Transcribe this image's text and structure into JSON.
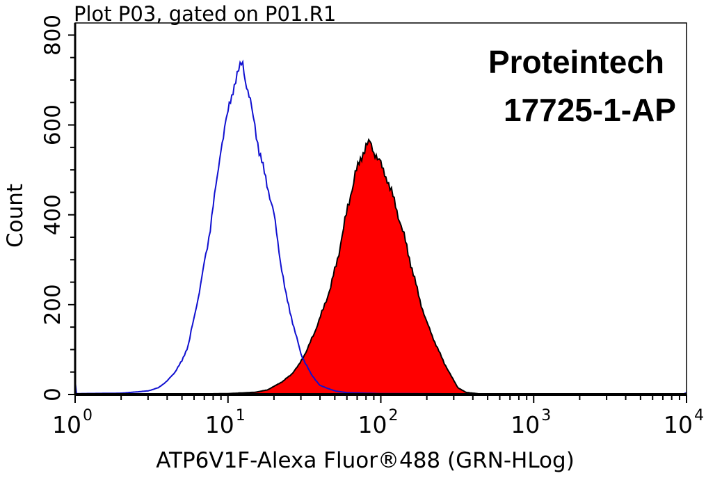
{
  "chart_data": {
    "type": "area",
    "title": "Plot P03, gated on P01.R1",
    "xlabel": "ATP6V1F-Alexa Fluor®488 (GRN-HLog)",
    "ylabel": "Count",
    "x_scale": "log",
    "xlim": [
      1,
      10000
    ],
    "ylim": [
      0,
      827
    ],
    "x_ticks": [
      {
        "base": "10",
        "exp": "0"
      },
      {
        "base": "10",
        "exp": "1"
      },
      {
        "base": "10",
        "exp": "2"
      },
      {
        "base": "10",
        "exp": "3"
      },
      {
        "base": "10",
        "exp": "4"
      }
    ],
    "y_ticks": [
      "0",
      "200",
      "400",
      "600",
      "800"
    ],
    "grid": false,
    "watermark": {
      "line1": "Proteintech",
      "line2": "17725-1-AP"
    },
    "series": [
      {
        "style": "outline",
        "color": "#1010d0",
        "points": [
          [
            1.0,
            30
          ],
          [
            1.02,
            2
          ],
          [
            2,
            3
          ],
          [
            3,
            8
          ],
          [
            3.5,
            15
          ],
          [
            4,
            30
          ],
          [
            4.5,
            50
          ],
          [
            5,
            75
          ],
          [
            5.5,
            110
          ],
          [
            6,
            170
          ],
          [
            6.5,
            230
          ],
          [
            7,
            290
          ],
          [
            7.5,
            350
          ],
          [
            8,
            420
          ],
          [
            8.5,
            480
          ],
          [
            9,
            550
          ],
          [
            9.5,
            590
          ],
          [
            10,
            630
          ],
          [
            11,
            690
          ],
          [
            12,
            730
          ],
          [
            12.5,
            740
          ],
          [
            13,
            700
          ],
          [
            14,
            650
          ],
          [
            15,
            600
          ],
          [
            16,
            540
          ],
          [
            18,
            470
          ],
          [
            20,
            400
          ],
          [
            22,
            300
          ],
          [
            24,
            220
          ],
          [
            27,
            150
          ],
          [
            30,
            90
          ],
          [
            35,
            45
          ],
          [
            40,
            20
          ],
          [
            50,
            8
          ],
          [
            60,
            4
          ],
          [
            100,
            2
          ],
          [
            1000,
            1
          ],
          [
            9500,
            1
          ],
          [
            10000,
            4
          ]
        ]
      },
      {
        "style": "filled",
        "color": "#ff0000",
        "outline": "#000000",
        "points": [
          [
            1,
            0
          ],
          [
            3,
            0
          ],
          [
            10,
            2
          ],
          [
            15,
            5
          ],
          [
            18,
            10
          ],
          [
            20,
            18
          ],
          [
            23,
            30
          ],
          [
            26,
            45
          ],
          [
            29,
            65
          ],
          [
            33,
            100
          ],
          [
            37,
            140
          ],
          [
            42,
            190
          ],
          [
            47,
            240
          ],
          [
            52,
            300
          ],
          [
            57,
            370
          ],
          [
            62,
            430
          ],
          [
            68,
            490
          ],
          [
            75,
            530
          ],
          [
            80,
            555
          ],
          [
            85,
            560
          ],
          [
            90,
            540
          ],
          [
            95,
            530
          ],
          [
            100,
            510
          ],
          [
            110,
            480
          ],
          [
            120,
            440
          ],
          [
            130,
            400
          ],
          [
            145,
            340
          ],
          [
            160,
            280
          ],
          [
            180,
            210
          ],
          [
            200,
            160
          ],
          [
            230,
            110
          ],
          [
            260,
            70
          ],
          [
            290,
            40
          ],
          [
            320,
            15
          ],
          [
            360,
            5
          ],
          [
            450,
            1
          ],
          [
            10000,
            0
          ]
        ]
      }
    ]
  }
}
